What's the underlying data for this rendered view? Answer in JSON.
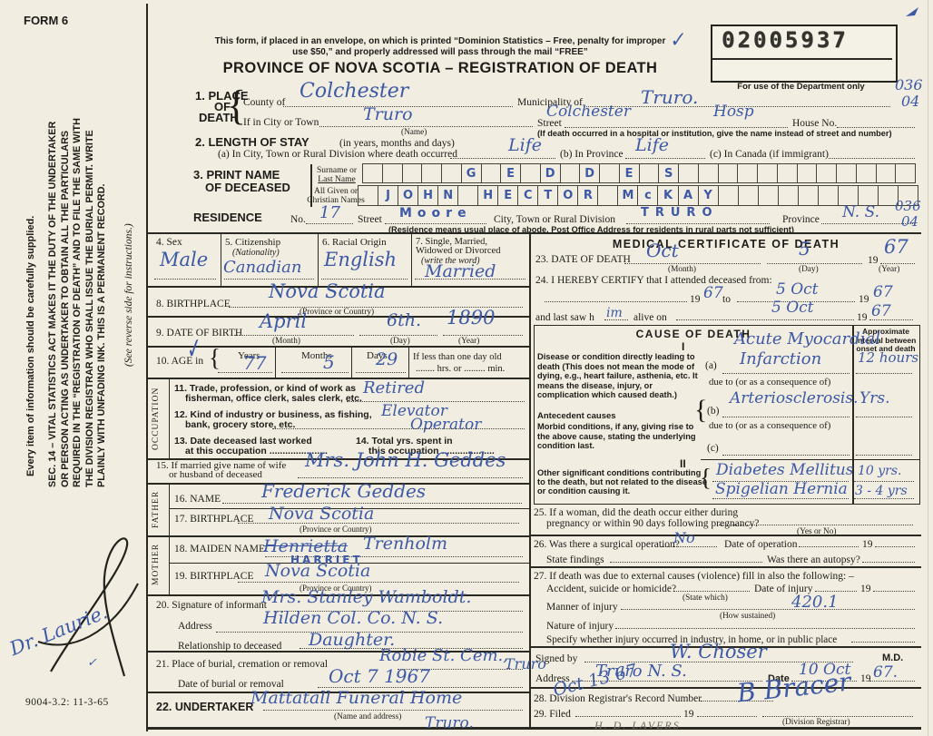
{
  "header": {
    "form_no": "FORM 6",
    "mail_note_1": "This form, if placed in an envelope, on which is printed “Dominion Statistics – Free, penalty for improper",
    "mail_note_2": "use $50,” and properly addressed will pass through the mail “FREE”",
    "title": "PROVINCE OF NOVA SCOTIA – REGISTRATION OF DEATH",
    "stamp_number": "02005937",
    "dept_note": "For use of the Department only",
    "code_top": "036",
    "code_bottom": "04"
  },
  "marks": {
    "check": "✓",
    "age_check": "✓",
    "sig_check": "✓"
  },
  "misc": {
    "y19": "19"
  },
  "sidebar": {
    "see_reverse": "(See reverse side for instructions.)",
    "sec14": "SEC. 14 – VITAL STATISTICS ACT MAKES IT THE DUTY OF THE UNDERTAKER OR PERSON ACTING AS UNDERTAKER TO OBTAIN ALL THE PARTICULARS REQUIRED IN THE “REGISTRATION OF DEATH” AND TO FILE THE SAME WITH THE DIVISION REGISTRAR WHO SHALL ISSUE THE BURIAL PERMIT. WRITE PLAINLY WITH UNFADING INK. THIS IS A PERMANENT RECORD.",
    "supplied": "Every item of information should be carefully supplied.",
    "signature": "Dr. Laurie.",
    "print_code": "9004-3.2: 11-3-65"
  },
  "place": {
    "sec_1": "1. PLACE",
    "sec_2": "OF",
    "sec_3": "DEATH",
    "county_label": "County of",
    "county_value": "Colchester",
    "municipality_label": "Municipality of",
    "municipality_value": "Truro.",
    "city_label": "If in City or Town",
    "city_value": "Truro",
    "city_sub": "(Name)",
    "street_label": "Street",
    "street_value_1": "Colchester",
    "street_value_2": "Hosp",
    "house_label": "House No.",
    "hospital_note": "(If death occurred in a hospital or institution, give the name instead of street and number)"
  },
  "stay": {
    "sec_label": "2. LENGTH OF STAY",
    "sec_sub": "(in years, months and days)",
    "a_label": "(a) In City, Town or Rural Division where death occurred",
    "a_value": "Life",
    "b_label": "(b) In Province",
    "b_value": "Life",
    "c_label": "(c) In Canada (if immigrant)"
  },
  "name": {
    "sec_1": "3. PRINT NAME",
    "sec_2": "OF DECEASED",
    "surname_label_1": "Surname or",
    "surname_label_2": "Last Name",
    "given_label_1": "All Given or",
    "given_label_2": "Christian Names",
    "surname_cells": [
      "",
      "",
      "",
      "",
      "",
      "G",
      "",
      "E",
      "",
      "D",
      "",
      "D",
      "",
      "E",
      "",
      "S",
      "",
      "",
      "",
      "",
      "",
      "",
      "",
      "",
      "",
      "",
      "",
      ""
    ],
    "given_cells": [
      "",
      "J",
      "O",
      "H",
      "N",
      "",
      "H",
      "E",
      "C",
      "T",
      "O",
      "R",
      "",
      "M",
      "c",
      "K",
      "A",
      "Y",
      "",
      "",
      "",
      "",
      "",
      "",
      "",
      "",
      "",
      ""
    ]
  },
  "residence": {
    "label": "RESIDENCE",
    "no_label": "No.",
    "no_value": "17",
    "street_label": "Street",
    "street_value": "Moore",
    "city_label": "City, Town or Rural Division",
    "city_value": "TRURO",
    "prov_label": "Province",
    "prov_value": "N. S.",
    "code_top": "036",
    "code_bottom": "04",
    "note": "(Residence means usual place of abode. Post Office Address for residents in rural parts not sufficient)"
  },
  "personal": {
    "sex_label": "4. Sex",
    "sex_value": "Male",
    "cit_label": "5. Citizenship",
    "cit_sub": "(Nationality)",
    "cit_value": "Canadian",
    "race_label": "6. Racial Origin",
    "race_value": "English",
    "mar_label_1": "7. Single, Married,",
    "mar_label_2": "Widowed or Divorced",
    "mar_sub": "(write the word)",
    "mar_value": "Married",
    "bp_label": "8. BIRTHPLACE",
    "bp_value": "Nova Scotia",
    "bp_sub": "(Province or Country)",
    "dob_label": "9. DATE OF BIRTH",
    "dob_month": "April",
    "dob_month_sub": "(Month)",
    "dob_day": "6th.",
    "dob_day_sub": "(Day)",
    "dob_year": "1890",
    "dob_year_sub": "(Year)",
    "age_label": "10. AGE in",
    "age_years_label": "Years",
    "age_years": "77",
    "age_months_label": "Months",
    "age_months": "5",
    "age_days_label": "Days",
    "age_days": "29",
    "age_less_1": "If less than one day old",
    "age_less_2": "........ hrs. or ......... min."
  },
  "occupation": {
    "strip": "OCCUPATION",
    "trade_1": "11. Trade, profession, or kind of work as",
    "trade_2": "fisherman, office clerk, sales clerk, etc.",
    "trade_value": "Retired",
    "ind_1": "12. Kind of industry or business, as fishing,",
    "ind_2": "bank, grocery store, etc.",
    "ind_value_1": "Elevator",
    "ind_value_2": "Operator",
    "last_1": "13. Date deceased last worked",
    "last_2": "at this occupation ......................",
    "total_1": "14. Total yrs. spent in",
    "total_2": "this occupation ...................."
  },
  "family": {
    "spouse_1": "15. If married give name of wife",
    "spouse_2": "or husband of deceased",
    "spouse_value": "Mrs. John H. Geddes",
    "father_strip": "FATHER",
    "father_name_label": "16. NAME",
    "father_name_value": "Frederick Geddes",
    "father_bp_label": "17. BIRTHPLACE",
    "father_bp_value": "Nova Scotia",
    "father_bp_sub": "(Province or Country)",
    "mother_strip": "MOTHER",
    "mother_name_label": "18. MAIDEN NAME",
    "mother_struck": "Henrietta",
    "mother_surname": "Trenholm",
    "mother_caps": "HARRIET",
    "mother_bp_label": "19. BIRTHPLACE",
    "mother_bp_value": "Nova Scotia",
    "mother_bp_sub": "(Province or Country)"
  },
  "informant": {
    "sig_label": "20. Signature of informant",
    "sig_value": "Mrs. Stanley Wamboldt.",
    "addr_label": "Address",
    "addr_value": "Hilden  Col. Co. N. S.",
    "rel_label": "Relationship to deceased",
    "rel_value": "Daughter."
  },
  "burial": {
    "place_label": "21. Place of burial, cremation or removal",
    "place_value": "Robie St. Cem.,",
    "place_value_2": "Truro",
    "date_label": "Date of burial or removal",
    "date_value": "Oct  7  1967",
    "undertaker_label": "22. UNDERTAKER",
    "undertaker_value": "Mattatall Funeral Home",
    "undertaker_sub": "(Name and address)",
    "undertaker_value_2": "Truro."
  },
  "medical": {
    "title": "MEDICAL CERTIFICATE OF DEATH",
    "dod_label": "23. DATE OF DEATH",
    "dod_month": "Oct",
    "dod_month_sub": "(Month)",
    "dod_day": "5",
    "dod_day_sub": "(Day)",
    "dod_year": "67",
    "dod_year_sub": "(Year)",
    "certify": "24. I HEREBY CERTIFY that I attended deceased from:",
    "from_year": "67",
    "to_label": "to",
    "to_value": "5 Oct",
    "to_year": "67",
    "saw_label": "and last saw h",
    "saw_fill": "im",
    "alive_label": "alive on",
    "alive_value": "5 Oct",
    "alive_year": "67"
  },
  "cause": {
    "title": "CAUSE OF DEATH",
    "interval_header": "Approximate interval be­tween onset and death",
    "part1": "I",
    "disease_text": "Disease or condition directly lead­ing to death (This does not mean the mode of dying, e.g., heart fail­ure, asthenia, etc. It means the disease, injury, or complication which caused death.)",
    "antecedent_title": "Antecedent causes",
    "antecedent_text": "Morbid conditions, if any, giving rise to the above cause, stating the underlying condition last.",
    "part2": "II",
    "other_text": "Other significant conditions contributing to the death, but not related to the disease or condi­tion causing it.",
    "a_label": "(a)",
    "a_value_1": "Acute Myocardial",
    "a_value_2": "Infarction",
    "a_interval": "12 hours",
    "due_to": "due to (or as a consequence of)",
    "b_label": "(b)",
    "b_value": "Arteriosclerosis.",
    "b_interval": "Yrs.",
    "c_label": "(c)",
    "other_value_1": "Diabetes Mellitus",
    "other_interval_1": "10 yrs.",
    "other_value_2": "Spigelian Hernia",
    "other_interval_2": "3 - 4 yrs"
  },
  "questions": {
    "q25_1": "25. If a woman, did the death occur either during",
    "q25_2": "pregnancy or within 90 days following pregnancy?",
    "q25_sub": "(Yes or No)",
    "q26": "26. Was there a surgical operation?",
    "q26_value": "No",
    "q26_date": "Date of operation",
    "q26_findings": "State findings",
    "q26_autopsy": "Was there an autopsy?",
    "q27": "27. If death was due to external causes (violence) fill in also the following: –",
    "q27_acc": "Accident, suicide or homicide?",
    "q27_state": "(State which)",
    "q27_date": "Date of injury",
    "q27_manner": "Manner of injury",
    "q27_how": "(How sustained)",
    "q27_code": "420.1",
    "q27_nature": "Nature of injury",
    "q27_specify": "Specify whether injury occurred in industry, in home, or in public place"
  },
  "certifier": {
    "signed_label": "Signed by",
    "signed_value": "W. Choser",
    "md_label": "M.D.",
    "spill_value": "Truro",
    "addr_label": "Address",
    "addr_value": "Truro  N. S.",
    "date_label": "Date",
    "date_value": "10 Oct",
    "year_value": "67."
  },
  "registrar": {
    "q28": "28. Division Registrar's Record Number",
    "q28_hw": "Oct 13  67",
    "q29": "29. Filed",
    "sig": "B Bracer",
    "sub": "(Division Registrar)",
    "pencil": "H. D.  LAVERS"
  }
}
